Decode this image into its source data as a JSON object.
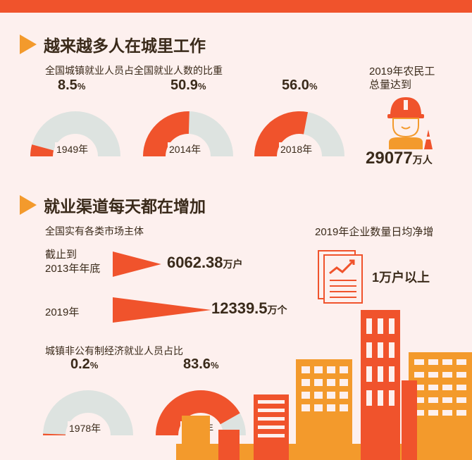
{
  "section1": {
    "title": "越来越多人在城里工作",
    "subtitle": "全国城镇就业人员占全国就业人数的比重"
  },
  "section2": {
    "title": "就业渠道每天都在增加",
    "market_subtitle": "全国实有各类市场主体",
    "enterprise_title": "2019年企业数量日均净增",
    "enterprise_value": "1万户以上",
    "nonpublic_subtitle": "城镇非公有制经济就业人员占比"
  },
  "migrant": {
    "label_line1": "2019年农民工",
    "label_line2": "总量达到",
    "value": "29077",
    "unit": "万人"
  },
  "market_bars": [
    {
      "label_line1": "截止到",
      "label_line2": "2013年年底",
      "value_text": "6062.38",
      "unit": "万户"
    },
    {
      "label_line1": "2019年",
      "label_line2": "",
      "value_text": "12339.5",
      "unit": "万个"
    }
  ],
  "colors": {
    "orange": "#f0532c",
    "light_orange": "#f39a2c",
    "gray": "#dde3e0",
    "bg": "#fdf0ee",
    "text": "#3a2a1a"
  },
  "icons": {
    "title_marker": "triangle-right-icon",
    "worker": "construction-worker-icon",
    "report": "report-chart-icon"
  },
  "chart_data": [
    {
      "type": "pie",
      "subtitle": "全国城镇就业人员占全国就业人数的比重",
      "categories": [
        "1949年",
        "2014年",
        "2018年"
      ],
      "values": [
        8.5,
        50.9,
        56.0
      ],
      "value_labels": [
        "8.5",
        "50.9",
        "56.0"
      ],
      "unit": "%"
    },
    {
      "type": "bar",
      "subtitle": "全国实有各类市场主体",
      "categories": [
        "截止到2013年年底",
        "2019年"
      ],
      "values": [
        6062.38,
        12339.5
      ],
      "units": [
        "万户",
        "万个"
      ]
    },
    {
      "type": "pie",
      "subtitle": "城镇非公有制经济就业人员占比",
      "categories": [
        "1978年",
        "2018年"
      ],
      "values": [
        0.2,
        83.6
      ],
      "value_labels": [
        "0.2",
        "83.6"
      ],
      "unit": "%"
    }
  ]
}
